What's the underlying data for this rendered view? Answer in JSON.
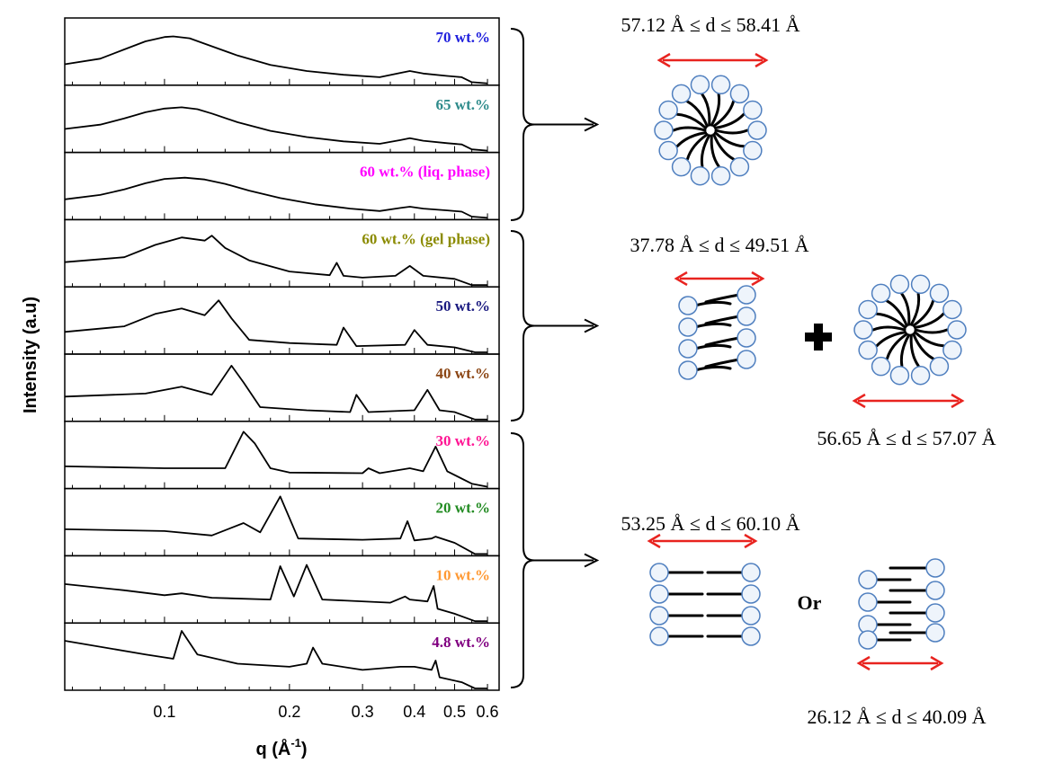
{
  "chart_data": {
    "type": "line",
    "y_label": "Intensity (a.u)",
    "x_label": {
      "text": "q (Å",
      "sup": "-1",
      "end": ")"
    },
    "log_x": true,
    "xlim": [
      0.0575,
      0.64
    ],
    "xticks": [
      0.1,
      0.2,
      0.3,
      0.4,
      0.5,
      0.6
    ],
    "minor_xticks": [
      0.06,
      0.07,
      0.08,
      0.09,
      0.12,
      0.14,
      0.16,
      0.18,
      0.25,
      0.35,
      0.45,
      0.55
    ],
    "ylim": [
      0,
      1
    ],
    "line_color": "#000000",
    "series": [
      {
        "name": "70 wt.%",
        "color": "#2020dd",
        "x": [
          0.0575,
          0.07,
          0.08,
          0.09,
          0.1,
          0.105,
          0.115,
          0.13,
          0.15,
          0.18,
          0.22,
          0.27,
          0.33,
          0.37,
          0.39,
          0.42,
          0.48,
          0.52,
          0.55,
          0.6
        ],
        "values": [
          0.31,
          0.4,
          0.55,
          0.68,
          0.75,
          0.76,
          0.73,
          0.6,
          0.45,
          0.3,
          0.2,
          0.14,
          0.1,
          0.17,
          0.2,
          0.16,
          0.12,
          0.1,
          0.02,
          0
        ]
      },
      {
        "name": "65 wt.%",
        "color": "#2e8b8b",
        "x": [
          0.0575,
          0.07,
          0.08,
          0.09,
          0.1,
          0.11,
          0.12,
          0.13,
          0.15,
          0.18,
          0.22,
          0.27,
          0.33,
          0.37,
          0.39,
          0.42,
          0.48,
          0.52,
          0.55,
          0.6
        ],
        "values": [
          0.35,
          0.42,
          0.52,
          0.62,
          0.68,
          0.7,
          0.67,
          0.6,
          0.46,
          0.32,
          0.22,
          0.15,
          0.11,
          0.17,
          0.2,
          0.16,
          0.12,
          0.1,
          0.02,
          0
        ]
      },
      {
        "name": "60 wt.% (liq. phase)",
        "color": "#ff00ff",
        "x": [
          0.0575,
          0.07,
          0.08,
          0.09,
          0.1,
          0.112,
          0.125,
          0.14,
          0.16,
          0.19,
          0.23,
          0.28,
          0.33,
          0.37,
          0.39,
          0.42,
          0.48,
          0.52,
          0.55,
          0.6
        ],
        "values": [
          0.3,
          0.37,
          0.46,
          0.56,
          0.63,
          0.65,
          0.62,
          0.55,
          0.44,
          0.32,
          0.22,
          0.15,
          0.11,
          0.16,
          0.18,
          0.15,
          0.12,
          0.1,
          0.02,
          0
        ]
      },
      {
        "name": "60 wt.% (gel phase)",
        "color": "#8b8b00",
        "x": [
          0.0575,
          0.08,
          0.095,
          0.11,
          0.125,
          0.13,
          0.14,
          0.16,
          0.2,
          0.25,
          0.26,
          0.27,
          0.3,
          0.36,
          0.39,
          0.42,
          0.5,
          0.55,
          0.6
        ],
        "values": [
          0.37,
          0.45,
          0.65,
          0.77,
          0.72,
          0.8,
          0.6,
          0.4,
          0.22,
          0.16,
          0.36,
          0.15,
          0.12,
          0.15,
          0.31,
          0.15,
          0.1,
          0,
          0
        ]
      },
      {
        "name": "50 wt.%",
        "color": "#1a1a80",
        "x": [
          0.0575,
          0.08,
          0.095,
          0.11,
          0.125,
          0.135,
          0.145,
          0.16,
          0.2,
          0.26,
          0.27,
          0.29,
          0.38,
          0.4,
          0.43,
          0.5,
          0.56,
          0.6
        ],
        "values": [
          0.33,
          0.42,
          0.62,
          0.71,
          0.6,
          0.84,
          0.55,
          0.2,
          0.15,
          0.12,
          0.4,
          0.1,
          0.12,
          0.36,
          0.12,
          0.08,
          0,
          0
        ]
      },
      {
        "name": "40 wt.%",
        "color": "#8b4513",
        "x": [
          0.0575,
          0.09,
          0.11,
          0.13,
          0.145,
          0.155,
          0.17,
          0.22,
          0.28,
          0.29,
          0.31,
          0.4,
          0.43,
          0.46,
          0.5,
          0.56,
          0.6
        ],
        "values": [
          0.37,
          0.42,
          0.53,
          0.4,
          0.87,
          0.6,
          0.2,
          0.15,
          0.12,
          0.4,
          0.12,
          0.15,
          0.48,
          0.15,
          0.12,
          0,
          0
        ]
      },
      {
        "name": "30 wt.%",
        "color": "#ff1493",
        "x": [
          0.0575,
          0.1,
          0.14,
          0.155,
          0.165,
          0.18,
          0.2,
          0.3,
          0.31,
          0.33,
          0.39,
          0.42,
          0.45,
          0.48,
          0.55,
          0.6
        ],
        "values": [
          0.33,
          0.3,
          0.3,
          0.89,
          0.7,
          0.3,
          0.23,
          0.22,
          0.3,
          0.22,
          0.3,
          0.25,
          0.65,
          0.25,
          0.05,
          0
        ]
      },
      {
        "name": "20 wt.%",
        "color": "#228b22",
        "x": [
          0.0575,
          0.1,
          0.13,
          0.155,
          0.17,
          0.19,
          0.21,
          0.3,
          0.37,
          0.385,
          0.4,
          0.44,
          0.45,
          0.5,
          0.56,
          0.6
        ],
        "values": [
          0.4,
          0.37,
          0.3,
          0.5,
          0.35,
          0.93,
          0.25,
          0.23,
          0.25,
          0.53,
          0.22,
          0.25,
          0.28,
          0.18,
          0,
          0
        ]
      },
      {
        "name": "10 wt.%",
        "color": "#ff9933",
        "x": [
          0.0575,
          0.08,
          0.1,
          0.11,
          0.13,
          0.18,
          0.19,
          0.205,
          0.22,
          0.24,
          0.35,
          0.38,
          0.39,
          0.43,
          0.445,
          0.455,
          0.5,
          0.56,
          0.6
        ],
        "values": [
          0.6,
          0.5,
          0.42,
          0.45,
          0.38,
          0.35,
          0.89,
          0.4,
          0.91,
          0.35,
          0.3,
          0.4,
          0.35,
          0.32,
          0.57,
          0.2,
          0.12,
          0,
          0
        ]
      },
      {
        "name": "4.8 wt.%",
        "color": "#800080",
        "x": [
          0.0575,
          0.09,
          0.105,
          0.11,
          0.12,
          0.15,
          0.2,
          0.22,
          0.228,
          0.24,
          0.3,
          0.37,
          0.4,
          0.44,
          0.45,
          0.46,
          0.52,
          0.56,
          0.6
        ],
        "values": [
          0.77,
          0.55,
          0.48,
          0.93,
          0.55,
          0.4,
          0.35,
          0.4,
          0.66,
          0.4,
          0.3,
          0.35,
          0.35,
          0.3,
          0.45,
          0.18,
          0.1,
          0,
          0
        ]
      }
    ],
    "annotations": [
      "57.12 Å  ≤ d  ≤ 58.41 Å",
      "37.78 Å  ≤ d  ≤ 49.51 Å",
      "56.65 Å  ≤ d  ≤ 57.07 Å",
      "53.25 Å  ≤ d  ≤ 60.10 Å",
      "Or",
      "26.12 Å  ≤ d  ≤ 40.09 Å"
    ]
  }
}
